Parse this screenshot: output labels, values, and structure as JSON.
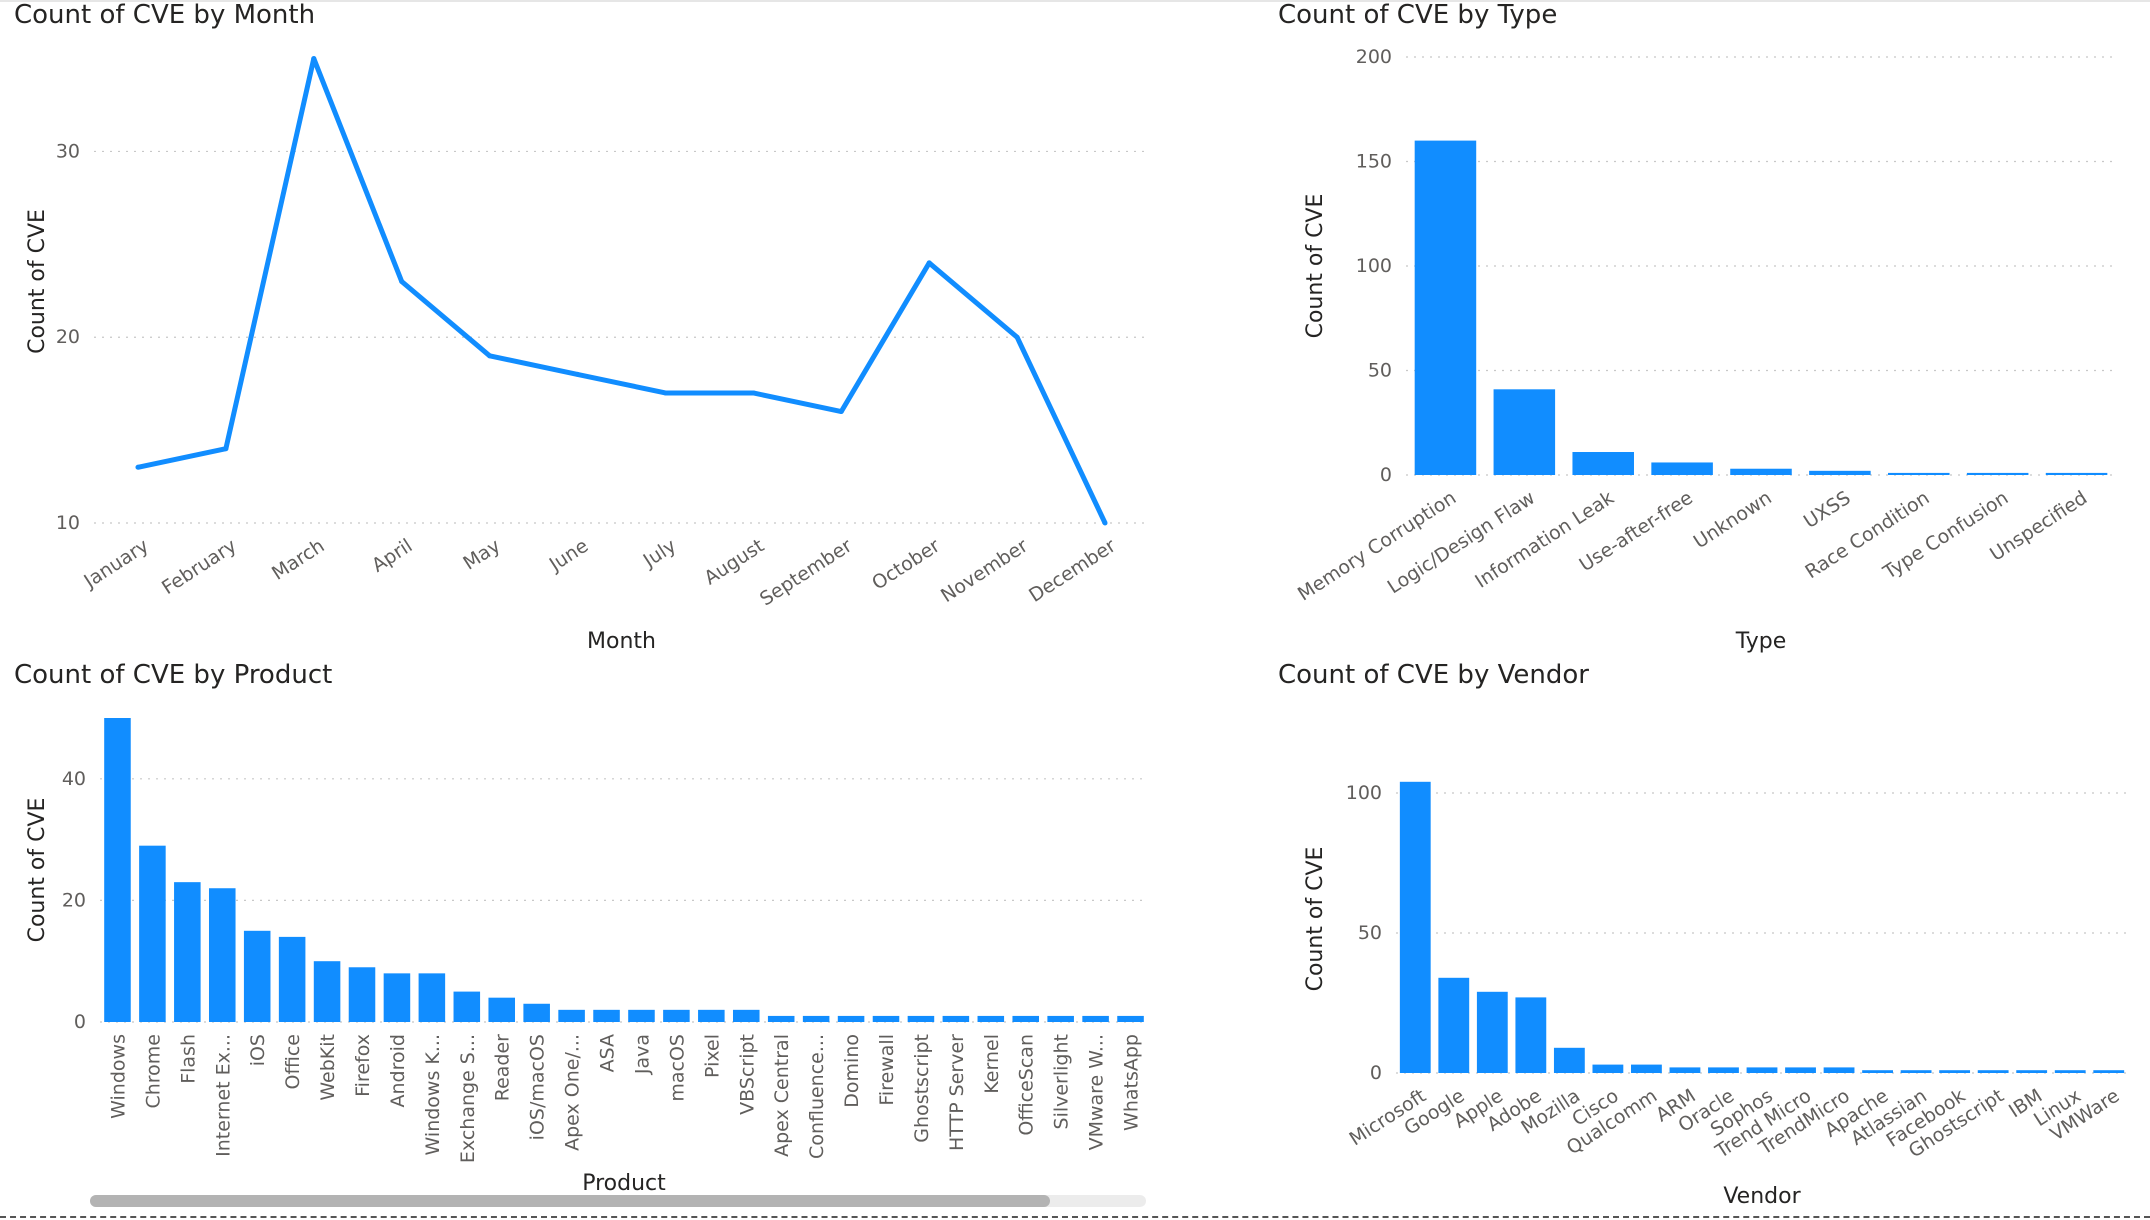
{
  "accent_color": "#118dff",
  "chart_data": [
    {
      "id": "month",
      "type": "line",
      "title": "Count of CVE by Month",
      "xlabel": "Month",
      "ylabel": "Count of CVE",
      "ylim": [
        10,
        36
      ],
      "yticks": [
        10,
        20,
        30
      ],
      "categories": [
        "January",
        "February",
        "March",
        "April",
        "May",
        "June",
        "July",
        "August",
        "September",
        "October",
        "November",
        "December"
      ],
      "values": [
        13,
        14,
        35,
        23,
        19,
        18,
        17,
        17,
        16,
        24,
        20,
        10
      ]
    },
    {
      "id": "type",
      "type": "bar",
      "title": "Count of CVE by Type",
      "xlabel": "Type",
      "ylabel": "Count of CVE",
      "ylim": [
        0,
        200
      ],
      "yticks": [
        0,
        50,
        100,
        150,
        200
      ],
      "categories": [
        "Memory Corruption",
        "Logic/Design Flaw",
        "Information Leak",
        "Use-after-free",
        "Unknown",
        "UXSS",
        "Race Condition",
        "Type Confusion",
        "Unspecified"
      ],
      "values": [
        160,
        41,
        11,
        6,
        3,
        2,
        1,
        1,
        1
      ]
    },
    {
      "id": "product",
      "type": "bar",
      "title": "Count of CVE by Product",
      "xlabel": "Product",
      "ylabel": "Count of CVE",
      "ylim": [
        0,
        50
      ],
      "yticks": [
        0,
        20,
        40
      ],
      "categories": [
        "Windows",
        "Chrome",
        "Flash",
        "Internet Ex...",
        "iOS",
        "Office",
        "WebKit",
        "Firefox",
        "Android",
        "Windows K...",
        "Exchange S...",
        "Reader",
        "iOS/macOS",
        "Apex One/...",
        "ASA",
        "Java",
        "macOS",
        "Pixel",
        "VBScript",
        "Apex Central",
        "Confluence...",
        "Domino",
        "Firewall",
        "Ghostscript",
        "HTTP Server",
        "Kernel",
        "OfficeScan",
        "Silverlight",
        "VMware W...",
        "WhatsApp"
      ],
      "values": [
        50,
        29,
        23,
        22,
        15,
        14,
        10,
        9,
        8,
        8,
        5,
        4,
        3,
        2,
        2,
        2,
        2,
        2,
        2,
        1,
        1,
        1,
        1,
        1,
        1,
        1,
        1,
        1,
        1,
        1
      ]
    },
    {
      "id": "vendor",
      "type": "bar",
      "title": "Count of CVE by Vendor",
      "xlabel": "Vendor",
      "ylabel": "Count of CVE",
      "ylim": [
        0,
        110
      ],
      "yticks": [
        0,
        50,
        100
      ],
      "categories": [
        "Microsoft",
        "Google",
        "Apple",
        "Adobe",
        "Mozilla",
        "Cisco",
        "Qualcomm",
        "ARM",
        "Oracle",
        "Sophos",
        "Trend Micro",
        "TrendMicro",
        "Apache",
        "Atlassian",
        "Facebook",
        "Ghostscript",
        "IBM",
        "Linux",
        "VMWare"
      ],
      "values": [
        104,
        34,
        29,
        27,
        9,
        3,
        3,
        2,
        2,
        2,
        2,
        2,
        1,
        1,
        1,
        1,
        1,
        1,
        1
      ]
    }
  ]
}
